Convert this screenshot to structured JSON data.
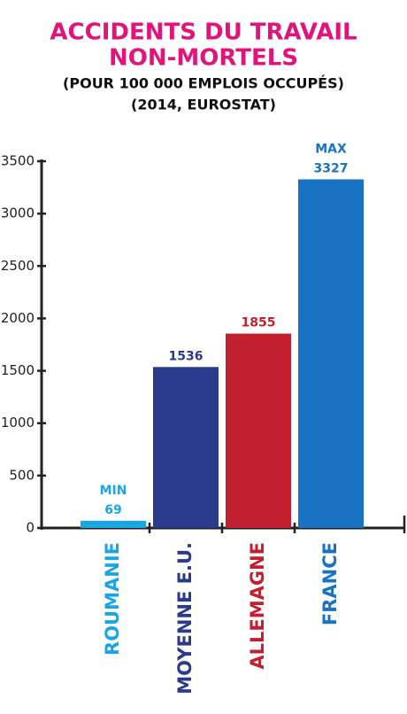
{
  "chart_data": {
    "type": "bar",
    "title": [
      "ACCIDENTS DU TRAVAIL",
      "NON-MORTELS"
    ],
    "subtitle": "(POUR 100 000 EMPLOIS OCCUPÉS)",
    "note": "(2014, EUROSTAT)",
    "categories": [
      "ROUMANIE",
      "MOYENNE E.U.",
      "ALLEMAGNE",
      "FRANCE"
    ],
    "values": [
      69,
      1536,
      1855,
      3327
    ],
    "value_labels": [
      "MIN 69",
      "1536",
      "1855",
      "MAX 3327"
    ],
    "colors": [
      "#1ba6e3",
      "#2a3a8d",
      "#c21f31",
      "#1a72c2"
    ],
    "ylim": [
      0,
      3500
    ],
    "yticks": [
      0,
      500,
      1000,
      1500,
      2000,
      2500,
      3000,
      3500
    ]
  }
}
